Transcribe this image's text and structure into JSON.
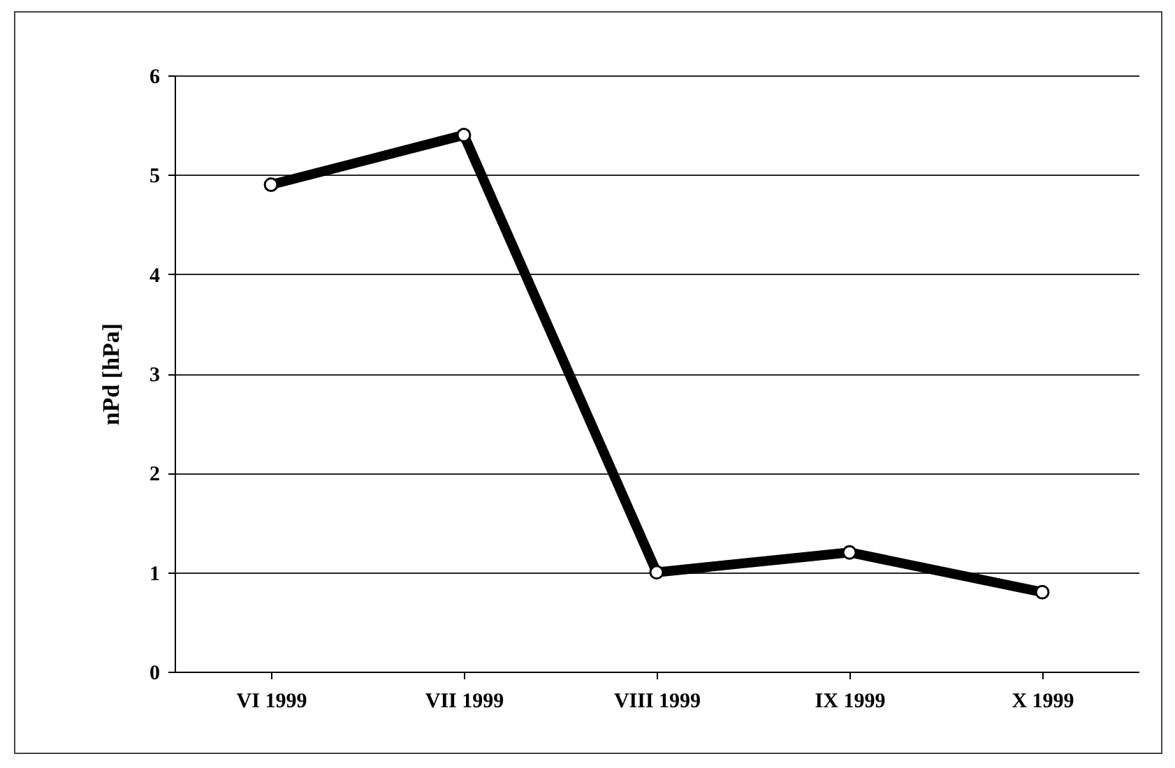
{
  "chart_data": {
    "type": "line",
    "ylabel": "nPd [hPa]",
    "categories": [
      "VI 1999",
      "VII 1999",
      "VIII 1999",
      "IX 1999",
      "X 1999"
    ],
    "series": [
      {
        "color": "#000000",
        "values": [
          4.9,
          5.4,
          1.0,
          1.2,
          0.8
        ]
      }
    ],
    "ylim": [
      0,
      6
    ],
    "yticks": [
      0,
      1,
      2,
      3,
      4,
      5,
      6
    ],
    "grid": "y",
    "marker": "circle",
    "line_style": "solid",
    "legend": false
  }
}
